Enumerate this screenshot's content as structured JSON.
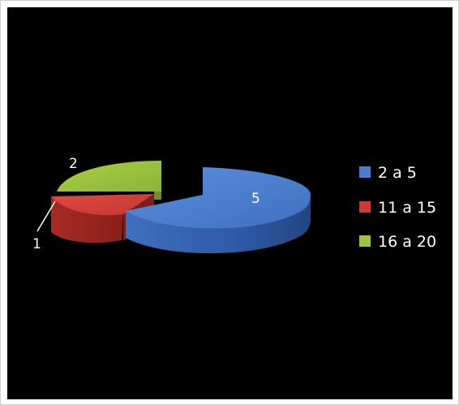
{
  "chart_data": {
    "type": "pie",
    "title": "",
    "categories": [
      "2 a 5",
      "11 a 15",
      "16 a 20"
    ],
    "values": [
      5,
      1,
      2
    ],
    "colors": [
      "#4a7fd0",
      "#d03a35",
      "#9cc43c"
    ],
    "data_labels": [
      "5",
      "1",
      "2"
    ],
    "legend_position": "right",
    "style": "3d-exploded"
  }
}
